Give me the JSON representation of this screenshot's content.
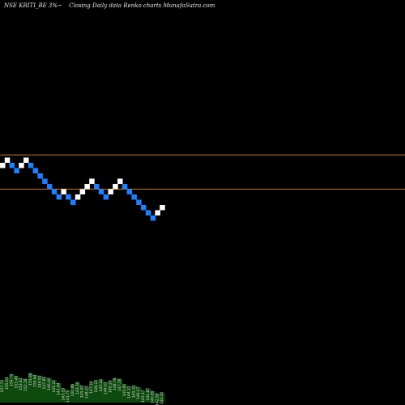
{
  "header": {
    "symbol": "NSE KRITI_BE 3%~",
    "description": "Closing Daily data Renko charts MunafaSutra.com"
  },
  "chart_data": {
    "type": "renko",
    "box_size_label": "3%",
    "colors": {
      "background": "#000000",
      "up_brick": "#ffffff",
      "down_brick": "#1e7fff",
      "level_line": "#c87a32",
      "volume": "#0e4a0e"
    },
    "bricks": [
      {
        "dir": "up",
        "level": 0
      },
      {
        "dir": "up",
        "level": 1
      },
      {
        "dir": "down",
        "level": 0
      },
      {
        "dir": "down",
        "level": -1
      },
      {
        "dir": "up",
        "level": 0
      },
      {
        "dir": "up",
        "level": 1
      },
      {
        "dir": "down",
        "level": 0
      },
      {
        "dir": "down",
        "level": -1
      },
      {
        "dir": "down",
        "level": -2
      },
      {
        "dir": "down",
        "level": -3
      },
      {
        "dir": "down",
        "level": -4
      },
      {
        "dir": "down",
        "level": -5
      },
      {
        "dir": "down",
        "level": -6
      },
      {
        "dir": "up",
        "level": -5
      },
      {
        "dir": "down",
        "level": -6
      },
      {
        "dir": "down",
        "level": -7
      },
      {
        "dir": "up",
        "level": -6
      },
      {
        "dir": "up",
        "level": -5
      },
      {
        "dir": "up",
        "level": -4
      },
      {
        "dir": "up",
        "level": -3
      },
      {
        "dir": "down",
        "level": -4
      },
      {
        "dir": "down",
        "level": -5
      },
      {
        "dir": "down",
        "level": -6
      },
      {
        "dir": "up",
        "level": -5
      },
      {
        "dir": "up",
        "level": -4
      },
      {
        "dir": "up",
        "level": -3
      },
      {
        "dir": "down",
        "level": -4
      },
      {
        "dir": "down",
        "level": -5
      },
      {
        "dir": "down",
        "level": -6
      },
      {
        "dir": "down",
        "level": -7
      },
      {
        "dir": "down",
        "level": -8
      },
      {
        "dir": "down",
        "level": -9
      },
      {
        "dir": "down",
        "level": -10
      },
      {
        "dir": "up",
        "level": -9
      },
      {
        "dir": "up",
        "level": -8
      }
    ],
    "level_lines": [
      2,
      -4.5
    ],
    "volume": [
      0.55,
      0.62,
      0.7,
      0.65,
      0.6,
      0.58,
      0.72,
      0.68,
      0.66,
      0.63,
      0.6,
      0.55,
      0.48,
      0.35,
      0.3,
      0.45,
      0.5,
      0.42,
      0.4,
      0.52,
      0.55,
      0.57,
      0.5,
      0.54,
      0.6,
      0.58,
      0.45,
      0.4,
      0.42,
      0.38,
      0.3,
      0.35,
      0.28,
      0.22,
      0.25
    ],
    "bottom_labels": [
      "157.73",
      "155.03",
      "154.75",
      "153.49",
      "153.81",
      "152.18",
      "151.88",
      "150.64",
      "149.92",
      "147.85",
      "146.40",
      "145.21",
      "141.64",
      "143.15",
      "141.70",
      "140.86",
      "143.20",
      "145.87",
      "148.23",
      "147.24",
      "146.23",
      "145.44",
      "146.01",
      "149.20",
      "148.78",
      "147.58",
      "145.60",
      "144.21",
      "145.32",
      "146.07",
      "145.17",
      "141.87",
      "140.69",
      "142.89",
      "144.45"
    ]
  }
}
